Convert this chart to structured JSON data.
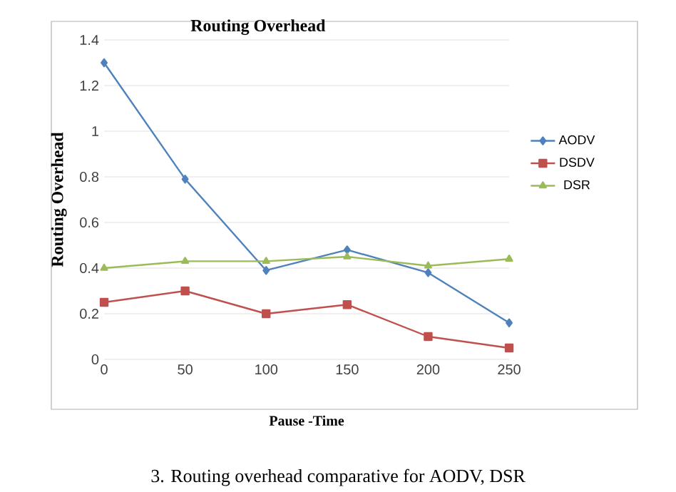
{
  "chart_data": {
    "type": "line",
    "title": "Routing Overhead",
    "xlabel": "Pause -Time",
    "ylabel": "Routing Overhead",
    "categories": [
      "0",
      "50",
      "100",
      "150",
      "200",
      "250"
    ],
    "series": [
      {
        "name": "AODV",
        "color": "#4f81bd",
        "marker": "diamond",
        "values": [
          1.3,
          0.79,
          0.39,
          0.48,
          0.38,
          0.16
        ]
      },
      {
        "name": "DSDV",
        "color": "#c0504d",
        "marker": "square",
        "values": [
          0.25,
          0.3,
          0.2,
          0.24,
          0.1,
          0.05
        ]
      },
      {
        "name": "DSR",
        "color": "#9bbb59",
        "marker": "triangle",
        "values": [
          0.4,
          0.43,
          0.43,
          0.45,
          0.41,
          0.44
        ]
      }
    ],
    "ylim": [
      0,
      1.4
    ],
    "yticks": [
      0,
      0.2,
      0.4,
      0.6,
      0.8,
      1,
      1.2,
      1.4
    ],
    "grid": "y",
    "legend": "right",
    "annotations": [
      "3. Routing overhead comparative for AODV, DSR"
    ]
  }
}
